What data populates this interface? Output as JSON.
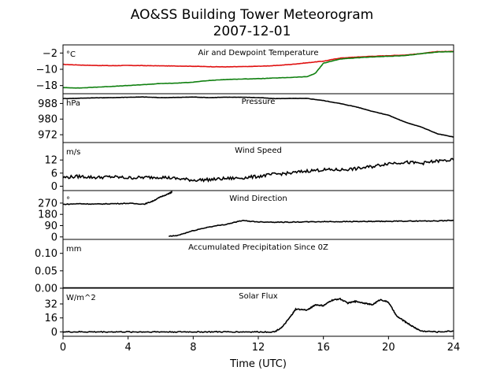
{
  "figure": {
    "title": "AO&SS Building Tower Meteorogram",
    "subtitle": "2007-12-01",
    "xlabel": "Time (UTC)",
    "xticks": [
      0,
      4,
      8,
      12,
      16,
      20,
      24
    ],
    "xlim": [
      0,
      24
    ]
  },
  "chart_data": [
    {
      "type": "line",
      "title": "Air and Dewpoint Temperature",
      "units": "°C",
      "ylim": [
        -22,
        2
      ],
      "yticks": [
        -2,
        -10,
        -18
      ],
      "ytick_labels": [
        "−2",
        "−10",
        "−18"
      ],
      "series": [
        {
          "color": "#e01010",
          "x": [
            0,
            1,
            2,
            3,
            4,
            5,
            6,
            7,
            8,
            9,
            10,
            11,
            12,
            13,
            14,
            15,
            16,
            17,
            18,
            19,
            20,
            21,
            22,
            23,
            24
          ],
          "y": [
            -7.6,
            -7.9,
            -8.1,
            -8.2,
            -8.1,
            -8.2,
            -8.3,
            -8.4,
            -8.5,
            -8.7,
            -8.8,
            -8.7,
            -8.5,
            -8.2,
            -7.6,
            -6.8,
            -6.0,
            -4.5,
            -4.0,
            -3.6,
            -3.3,
            -3.0,
            -2.3,
            -1.3,
            -1.2
          ]
        },
        {
          "color": "#108010",
          "x": [
            0,
            1,
            2,
            3,
            4,
            5,
            6,
            7,
            8,
            9,
            10,
            11,
            12,
            13,
            14,
            15,
            15.5,
            16,
            17,
            18,
            19,
            20,
            21,
            22,
            23,
            24
          ],
          "y": [
            -19.0,
            -19.2,
            -18.8,
            -18.4,
            -18.0,
            -17.5,
            -17.0,
            -16.8,
            -16.3,
            -15.5,
            -15.0,
            -14.8,
            -14.6,
            -14.3,
            -14.0,
            -13.6,
            -12.0,
            -7.0,
            -5.0,
            -4.4,
            -3.9,
            -3.6,
            -3.3,
            -2.3,
            -1.5,
            -1.3
          ]
        }
      ]
    },
    {
      "type": "line",
      "title": "Pressure",
      "units": "hPa",
      "ylim": [
        968,
        993
      ],
      "yticks": [
        988,
        980,
        972
      ],
      "series": [
        {
          "color": "#000000",
          "x": [
            0,
            1,
            2,
            3,
            4,
            5,
            6,
            7,
            8,
            9,
            10,
            11,
            12,
            13,
            14,
            15,
            16,
            17,
            18,
            19,
            20,
            21,
            22,
            23,
            24
          ],
          "y": [
            990.5,
            990.7,
            990.9,
            991.0,
            991.2,
            991.3,
            991.0,
            991.1,
            991.3,
            991.0,
            991.2,
            991.2,
            991.0,
            990.5,
            990.6,
            990.6,
            989.5,
            988.0,
            986.3,
            984.0,
            982.0,
            978.5,
            976.0,
            972.5,
            970.8
          ]
        }
      ]
    },
    {
      "type": "line",
      "title": "Wind Speed",
      "units": "m/s",
      "ylim": [
        -2,
        20
      ],
      "yticks": [
        12,
        6,
        0
      ],
      "series": [
        {
          "color": "#000000",
          "x": [
            0,
            1,
            2,
            3,
            4,
            5,
            6,
            7,
            8,
            9,
            10,
            11,
            12,
            13,
            14,
            15,
            16,
            17,
            18,
            19,
            20,
            21,
            22,
            23,
            24
          ],
          "y": [
            4.0,
            4.5,
            4.0,
            4.3,
            3.8,
            4.0,
            4.2,
            3.5,
            2.8,
            3.0,
            3.5,
            3.8,
            4.5,
            5.5,
            6.0,
            7.0,
            7.5,
            7.5,
            8.0,
            9.0,
            10.5,
            11.0,
            10.5,
            11.5,
            12.0
          ]
        }
      ]
    },
    {
      "type": "line",
      "title": "Wind Direction",
      "units": "°",
      "ylim": [
        -20,
        370
      ],
      "yticks": [
        270,
        180,
        90,
        0
      ],
      "series": [
        {
          "color": "#000000",
          "x": [
            0,
            1,
            2,
            3,
            4,
            5,
            5.5,
            6,
            6.5,
            6.7
          ],
          "y": [
            260,
            265,
            262,
            265,
            268,
            262,
            285,
            320,
            345,
            360
          ]
        },
        {
          "color": "#000000",
          "x": [
            6.5,
            7,
            8,
            9,
            10,
            11,
            12,
            13,
            14,
            15,
            16,
            17,
            18,
            19,
            20,
            21,
            22,
            23,
            24
          ],
          "y": [
            5,
            10,
            50,
            80,
            100,
            130,
            120,
            118,
            118,
            120,
            122,
            122,
            123,
            123,
            124,
            126,
            127,
            128,
            132
          ]
        }
      ]
    },
    {
      "type": "line",
      "title": "Accumulated Precipitation Since 0Z",
      "units": "mm",
      "ylim": [
        0,
        0.14
      ],
      "yticks": [
        0.1,
        0.05,
        0.0
      ],
      "ytick_labels": [
        "0.10",
        "0.05",
        "0.00"
      ],
      "series": [
        {
          "color": "#000000",
          "x": [
            0,
            24
          ],
          "y": [
            0,
            0
          ]
        }
      ]
    },
    {
      "type": "line",
      "title": "Solar Flux",
      "units": "W/m^2",
      "ylim": [
        -5,
        50
      ],
      "yticks": [
        32,
        16,
        0
      ],
      "series": [
        {
          "color": "#000000",
          "x": [
            0,
            1,
            2,
            3,
            4,
            5,
            6,
            7,
            8,
            9,
            10,
            11,
            12,
            13,
            13.5,
            14,
            14.3,
            15,
            15.5,
            16,
            16.5,
            17,
            17.5,
            18,
            18.5,
            19,
            19.5,
            20,
            20.5,
            21,
            21.5,
            22,
            23,
            24
          ],
          "y": [
            0,
            0,
            0,
            0,
            0,
            0,
            0,
            0,
            0,
            0,
            0,
            0,
            0,
            0,
            6,
            18,
            26,
            25,
            31,
            30,
            36,
            38,
            33,
            35,
            33,
            31,
            37,
            34,
            18,
            12,
            6,
            1,
            0,
            1
          ]
        }
      ]
    }
  ]
}
